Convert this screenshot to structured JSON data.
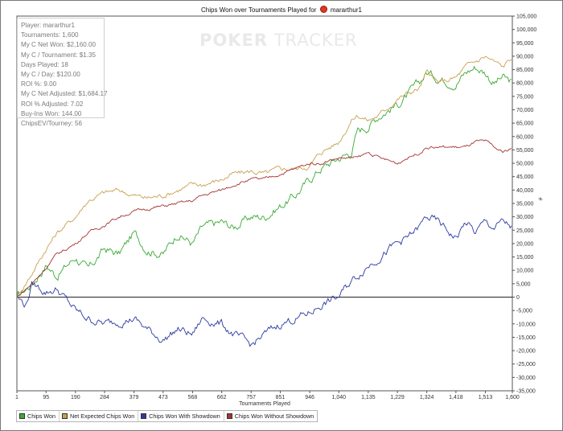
{
  "chart_data": {
    "type": "line",
    "title_prefix": "Chips Won over Tournaments Played for",
    "player_name": "mararthur1",
    "xlabel": "Tournaments Played",
    "ylabel": "",
    "xlim": [
      1,
      1600
    ],
    "ylim": [
      -35000,
      105000
    ],
    "x_ticks": [
      1,
      95,
      190,
      284,
      379,
      473,
      568,
      662,
      757,
      851,
      946,
      1040,
      1135,
      1229,
      1324,
      1418,
      1513,
      1600
    ],
    "x_tick_labels": [
      "1",
      "95",
      "190",
      "284",
      "379",
      "473",
      "568",
      "662",
      "757",
      "851",
      "946",
      "1,040",
      "1,135",
      "1,229",
      "1,324",
      "1,418",
      "1,513",
      "1,600"
    ],
    "y_ticks": [
      -35000,
      -30000,
      -25000,
      -20000,
      -15000,
      -10000,
      -5000,
      0,
      5000,
      10000,
      15000,
      20000,
      25000,
      30000,
      35000,
      40000,
      45000,
      50000,
      55000,
      60000,
      65000,
      70000,
      75000,
      80000,
      85000,
      90000,
      95000,
      100000,
      105000
    ],
    "y_tick_labels": [
      "-35,000",
      "-30,000",
      "-25,000",
      "-20,000",
      "-15,000",
      "-10,000",
      "-5,000",
      "0",
      "5,000",
      "10,000",
      "15,000",
      "20,000",
      "25,000",
      "30,000",
      "35,000",
      "40,000",
      "45,000",
      "50,000",
      "55,000",
      "60,000",
      "65,000",
      "70,000",
      "75,000",
      "80,000",
      "85,000",
      "90,000",
      "95,000",
      "100,000",
      "105,000"
    ],
    "y_axis_side": "right",
    "grid": false,
    "legend_position": "bottom",
    "series": [
      {
        "name": "Chips Won",
        "color": "#3aaa35",
        "x": [
          1,
          50,
          95,
          130,
          190,
          230,
          284,
          330,
          379,
          420,
          473,
          520,
          568,
          600,
          662,
          700,
          757,
          800,
          851,
          900,
          946,
          980,
          1040,
          1080,
          1100,
          1135,
          1170,
          1229,
          1260,
          1300,
          1324,
          1360,
          1418,
          1450,
          1480,
          1513,
          1540,
          1570,
          1600
        ],
        "y": [
          0,
          5000,
          12000,
          8000,
          15000,
          10000,
          18000,
          16000,
          24000,
          18000,
          16000,
          24000,
          20000,
          26000,
          28000,
          26000,
          30000,
          30000,
          34000,
          38000,
          44000,
          48000,
          52000,
          54000,
          62000,
          64000,
          68000,
          72000,
          75000,
          80000,
          84000,
          82000,
          80000,
          84000,
          86000,
          84000,
          80000,
          82000,
          80000
        ]
      },
      {
        "name": "Net Expected Chips Won",
        "color": "#c9a04e",
        "x": [
          1,
          50,
          95,
          130,
          190,
          230,
          284,
          330,
          379,
          420,
          473,
          520,
          568,
          600,
          662,
          700,
          757,
          800,
          851,
          900,
          946,
          980,
          1040,
          1080,
          1100,
          1135,
          1170,
          1229,
          1260,
          1300,
          1324,
          1360,
          1418,
          1450,
          1480,
          1513,
          1540,
          1570,
          1600
        ],
        "y": [
          0,
          9000,
          18000,
          24000,
          30000,
          36000,
          39000,
          40000,
          38000,
          37000,
          38000,
          40000,
          42000,
          42000,
          44000,
          46000,
          47000,
          46000,
          48000,
          48000,
          49000,
          54000,
          58000,
          66000,
          68000,
          66000,
          68000,
          74000,
          76000,
          78000,
          84000,
          80000,
          82000,
          86000,
          88000,
          90000,
          88000,
          86000,
          90000
        ]
      },
      {
        "name": "Chips Won With Showdown",
        "color": "#2c3aa0",
        "x": [
          1,
          30,
          50,
          95,
          130,
          190,
          230,
          284,
          330,
          379,
          420,
          473,
          520,
          568,
          600,
          662,
          700,
          757,
          800,
          851,
          900,
          946,
          980,
          1040,
          1080,
          1100,
          1135,
          1170,
          1229,
          1260,
          1300,
          1324,
          1360,
          1418,
          1450,
          1480,
          1513,
          1540,
          1570,
          1600
        ],
        "y": [
          0,
          -3000,
          5000,
          2000,
          3000,
          -5000,
          -8000,
          -10000,
          -9000,
          -8000,
          -12000,
          -16000,
          -12000,
          -14000,
          -8000,
          -10000,
          -14000,
          -18000,
          -14000,
          -10000,
          -8000,
          -6000,
          -3000,
          0,
          6000,
          8000,
          12000,
          15000,
          20000,
          22000,
          26000,
          30000,
          28000,
          22000,
          28000,
          24000,
          28000,
          26000,
          28000,
          26000
        ]
      },
      {
        "name": "Chips Won Without Showdown",
        "color": "#a63232",
        "x": [
          1,
          50,
          95,
          130,
          190,
          230,
          284,
          330,
          379,
          420,
          473,
          520,
          568,
          600,
          662,
          700,
          757,
          800,
          851,
          900,
          946,
          980,
          1040,
          1080,
          1100,
          1135,
          1170,
          1229,
          1260,
          1300,
          1324,
          1360,
          1418,
          1450,
          1480,
          1513,
          1540,
          1570,
          1600
        ],
        "y": [
          0,
          5000,
          11000,
          16000,
          20000,
          24000,
          27000,
          30000,
          32000,
          33000,
          34000,
          35000,
          36000,
          38000,
          40000,
          42000,
          44000,
          44000,
          46000,
          48000,
          50000,
          50000,
          52000,
          52000,
          52000,
          54000,
          52000,
          50000,
          52000,
          54000,
          56000,
          56000,
          56000,
          56000,
          58000,
          58000,
          56000,
          54000,
          56000
        ]
      }
    ]
  },
  "stats": [
    "Player: mararthur1",
    "Tournaments: 1,600",
    "My C Net Won: $2,160.00",
    "My C / Tournament: $1.35",
    "Days Played: 18",
    "My C / Day: $120.00",
    "ROI %: 9.00",
    "My C Net Adjusted: $1,684.17",
    "ROI % Adjusted: 7.02",
    "Buy-Ins Won: 144.00",
    "ChipsEV/Tourney: 56"
  ],
  "watermark": {
    "part_a": "POKER",
    "part_b": "TRACKER"
  },
  "axis_mark": "#"
}
